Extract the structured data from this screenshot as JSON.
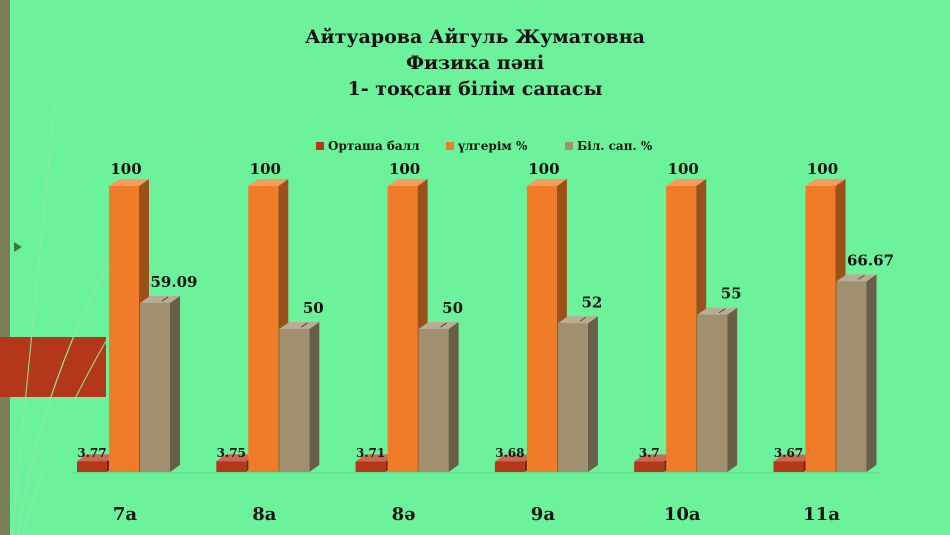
{
  "title_lines": [
    "Айтуарова Айгуль Жуматовна",
    "Физика пәні",
    "1- тоқсан білім сапасы"
  ],
  "colors": {
    "background": "#6cf29a",
    "series": [
      "#b5371a",
      "#f07b28",
      "#a09070"
    ]
  },
  "chart_data": {
    "type": "bar",
    "categories": [
      "7а",
      "8а",
      "8ә",
      "9а",
      "10а",
      "11а"
    ],
    "series": [
      {
        "name": "Орташа балл",
        "values": [
          3.77,
          3.75,
          3.71,
          3.68,
          3.7,
          3.67
        ],
        "labels": [
          "3.77",
          "3.75",
          "3.71",
          "3.68",
          "3.7",
          "3.67"
        ]
      },
      {
        "name": "үлгерім %",
        "values": [
          100,
          100,
          100,
          100,
          100,
          100
        ],
        "labels": [
          "100",
          "100",
          "100",
          "100",
          "100",
          "100"
        ]
      },
      {
        "name": "Біл. сап. %",
        "values": [
          59.09,
          50,
          50,
          52,
          55,
          66.67
        ],
        "labels": [
          "59.09",
          "50",
          "50",
          "52",
          "55",
          "66.67"
        ]
      }
    ],
    "ylim": [
      0,
      100
    ],
    "legend_position": "top",
    "grid": false,
    "style": "3d-clustered-column"
  }
}
